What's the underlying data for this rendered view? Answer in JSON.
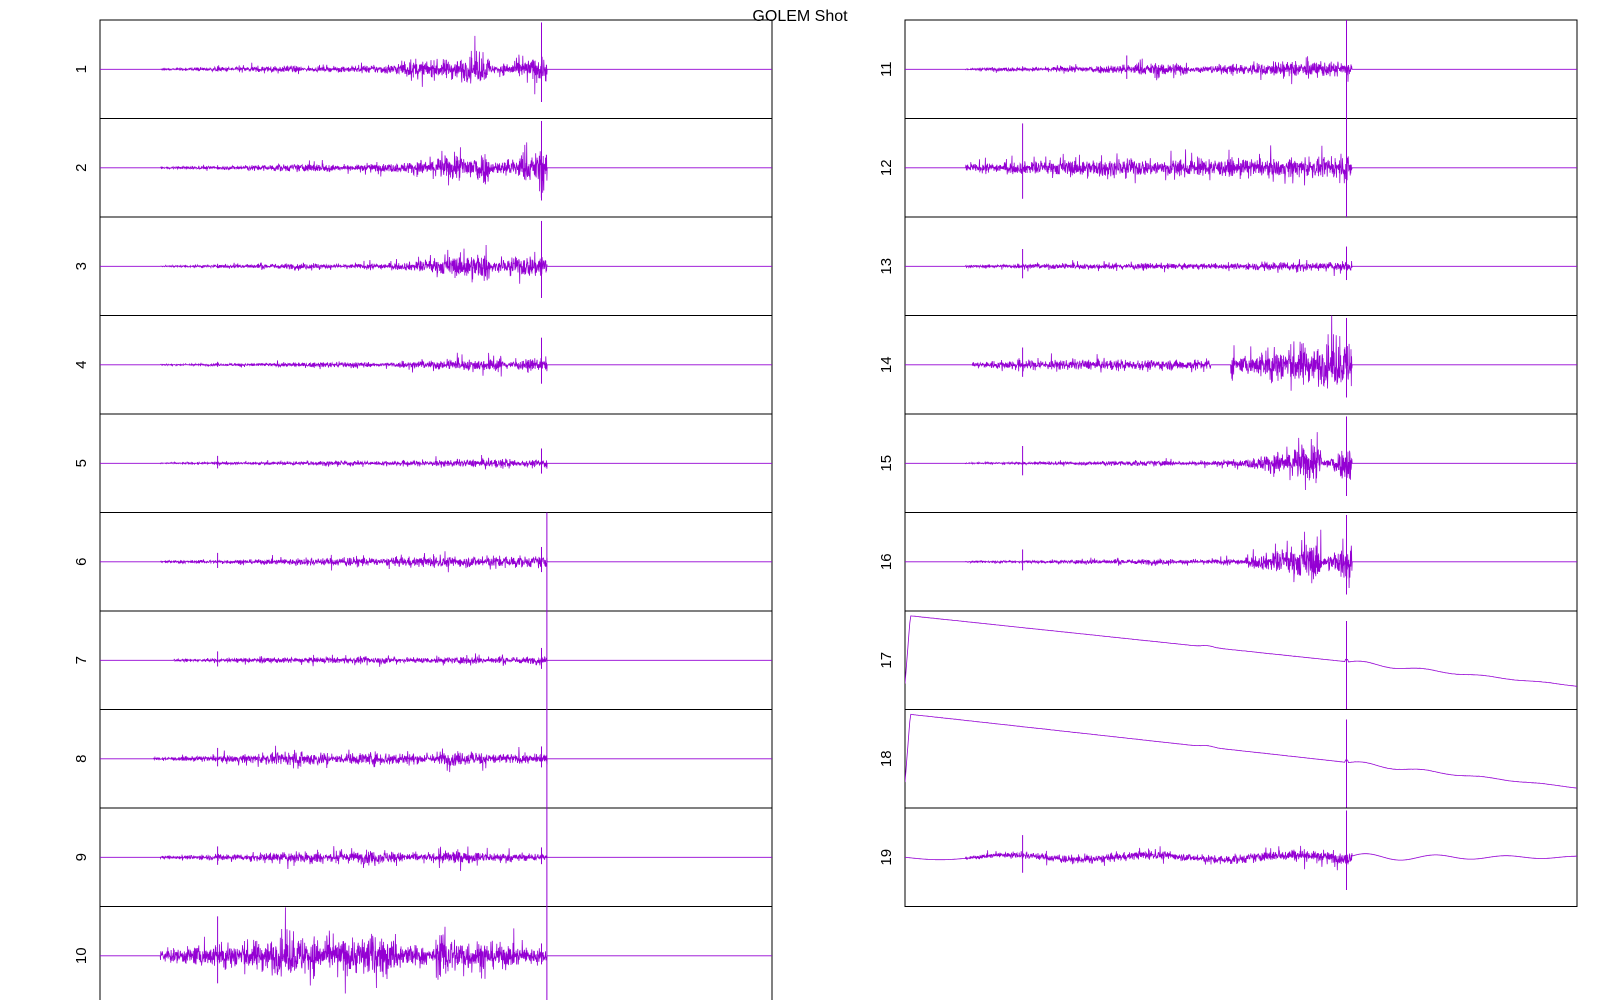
{
  "title": "GOLEM Shot",
  "chart_data": {
    "type": "line",
    "title": "GOLEM Shot",
    "color": "#9400d3",
    "frame_color": "#000000",
    "grid": false,
    "legend": "none",
    "panels": [
      {
        "label": "1",
        "column": "left",
        "kind": "burst",
        "envelope": [
          [
            0.09,
            0.15,
            0.07
          ],
          [
            0.3,
            0.4,
            0.14
          ],
          [
            0.58,
            0.665,
            0.55
          ]
        ],
        "spikes": [
          [
            0.175,
            0.06
          ],
          [
            0.657,
            0.95
          ]
        ]
      },
      {
        "label": "2",
        "column": "left",
        "kind": "burst",
        "envelope": [
          [
            0.09,
            0.2,
            0.08
          ],
          [
            0.35,
            0.45,
            0.2
          ],
          [
            0.58,
            0.665,
            0.7
          ]
        ],
        "spikes": [
          [
            0.175,
            0.05
          ],
          [
            0.657,
            0.95
          ]
        ]
      },
      {
        "label": "3",
        "column": "left",
        "kind": "burst",
        "envelope": [
          [
            0.09,
            0.18,
            0.06
          ],
          [
            0.33,
            0.45,
            0.14
          ],
          [
            0.58,
            0.665,
            0.6
          ]
        ],
        "spikes": [
          [
            0.175,
            0.05
          ],
          [
            0.657,
            0.92
          ]
        ]
      },
      {
        "label": "4",
        "column": "left",
        "kind": "burst",
        "envelope": [
          [
            0.09,
            0.2,
            0.05
          ],
          [
            0.4,
            0.45,
            0.12
          ],
          [
            0.6,
            0.665,
            0.28
          ]
        ],
        "spikes": [
          [
            0.175,
            0.06
          ],
          [
            0.657,
            0.55
          ]
        ]
      },
      {
        "label": "5",
        "column": "left",
        "kind": "burst",
        "envelope": [
          [
            0.09,
            0.25,
            0.06
          ],
          [
            0.4,
            0.45,
            0.1
          ],
          [
            0.62,
            0.665,
            0.18
          ]
        ],
        "spikes": [
          [
            0.175,
            0.15
          ],
          [
            0.657,
            0.3
          ]
        ]
      },
      {
        "label": "6",
        "column": "left",
        "kind": "burst",
        "envelope": [
          [
            0.09,
            0.25,
            0.1
          ],
          [
            0.4,
            0.45,
            0.2
          ],
          [
            0.62,
            0.665,
            0.24
          ]
        ],
        "spikes": [
          [
            0.175,
            0.18
          ],
          [
            0.657,
            0.3
          ]
        ]
      },
      {
        "label": "7",
        "column": "left",
        "kind": "burst",
        "envelope": [
          [
            0.11,
            0.25,
            0.1
          ],
          [
            0.45,
            0.52,
            0.14
          ],
          [
            0.63,
            0.665,
            0.14
          ]
        ],
        "spikes": [
          [
            0.175,
            0.18
          ],
          [
            0.657,
            0.25
          ]
        ]
      },
      {
        "label": "8",
        "column": "left",
        "kind": "burst",
        "envelope": [
          [
            0.08,
            0.18,
            0.12
          ],
          [
            0.34,
            0.4,
            0.3
          ],
          [
            0.5,
            0.665,
            0.16
          ]
        ],
        "spikes": [
          [
            0.175,
            0.22
          ],
          [
            0.657,
            0.25
          ]
        ]
      },
      {
        "label": "9",
        "column": "left",
        "kind": "burst",
        "envelope": [
          [
            0.09,
            0.22,
            0.14
          ],
          [
            0.33,
            0.4,
            0.28
          ],
          [
            0.5,
            0.665,
            0.12
          ]
        ],
        "spikes": [
          [
            0.175,
            0.22
          ],
          [
            0.657,
            0.2
          ]
        ]
      },
      {
        "label": "10",
        "column": "left",
        "kind": "burst",
        "envelope": [
          [
            0.09,
            0.2,
            0.55
          ],
          [
            0.33,
            0.4,
            0.85
          ],
          [
            0.5,
            0.665,
            0.24
          ]
        ],
        "spikes": [
          [
            0.175,
            0.8
          ],
          [
            0.657,
            0.25
          ]
        ]
      },
      {
        "label": "11",
        "column": "right",
        "kind": "burst",
        "envelope": [
          [
            0.09,
            0.12,
            0.05
          ],
          [
            0.17,
            0.22,
            0.1
          ],
          [
            0.42,
            0.55,
            0.28
          ],
          [
            0.6,
            0.665,
            0.3
          ]
        ],
        "spikes": [
          [
            0.175,
            0.06
          ],
          [
            0.33,
            0.28
          ],
          [
            0.657,
            0.95
          ]
        ]
      },
      {
        "label": "12",
        "column": "right",
        "kind": "burst",
        "envelope": [
          [
            0.09,
            0.25,
            0.34
          ],
          [
            0.4,
            0.55,
            0.34
          ],
          [
            0.6,
            0.665,
            0.4
          ]
        ],
        "spikes": [
          [
            0.175,
            0.9
          ],
          [
            0.657,
            0.8
          ]
        ]
      },
      {
        "label": "13",
        "column": "right",
        "kind": "burst",
        "envelope": [
          [
            0.09,
            0.2,
            0.1
          ],
          [
            0.4,
            0.5,
            0.12
          ],
          [
            0.6,
            0.665,
            0.22
          ]
        ],
        "spikes": [
          [
            0.175,
            0.35
          ],
          [
            0.657,
            0.4
          ]
        ]
      },
      {
        "label": "14",
        "column": "right",
        "kind": "gapped",
        "envelope": [
          [
            0.1,
            0.16,
            0.2
          ],
          [
            0.42,
            0.45,
            0.2
          ],
          [
            0.49,
            0.55,
            0.7
          ],
          [
            0.6,
            0.665,
            0.95
          ]
        ],
        "spikes": [
          [
            0.175,
            0.35
          ],
          [
            0.657,
            0.95
          ]
        ]
      },
      {
        "label": "15",
        "column": "right",
        "kind": "burst",
        "envelope": [
          [
            0.09,
            0.2,
            0.05
          ],
          [
            0.4,
            0.5,
            0.12
          ],
          [
            0.62,
            0.665,
            0.85
          ]
        ],
        "spikes": [
          [
            0.175,
            0.35
          ],
          [
            0.657,
            0.95
          ]
        ]
      },
      {
        "label": "16",
        "column": "right",
        "kind": "burst",
        "envelope": [
          [
            0.09,
            0.2,
            0.06
          ],
          [
            0.4,
            0.5,
            0.12
          ],
          [
            0.62,
            0.665,
            0.85
          ]
        ],
        "spikes": [
          [
            0.175,
            0.25
          ],
          [
            0.657,
            0.95
          ]
        ]
      },
      {
        "label": "17",
        "column": "right",
        "kind": "ramp",
        "ramp": {
          "peak": 0.95,
          "end": -0.55,
          "bump": 0.45
        }
      },
      {
        "label": "18",
        "column": "right",
        "kind": "ramp",
        "ramp": {
          "peak": 0.95,
          "end": -0.62,
          "bump": 0.45
        }
      },
      {
        "label": "19",
        "column": "right",
        "kind": "noisy",
        "envelope": [
          [
            0.09,
            0.2,
            0.15
          ],
          [
            0.4,
            0.5,
            0.18
          ],
          [
            0.6,
            0.665,
            0.24
          ]
        ],
        "spikes": [
          [
            0.175,
            0.45
          ],
          [
            0.657,
            0.95
          ]
        ]
      }
    ]
  }
}
